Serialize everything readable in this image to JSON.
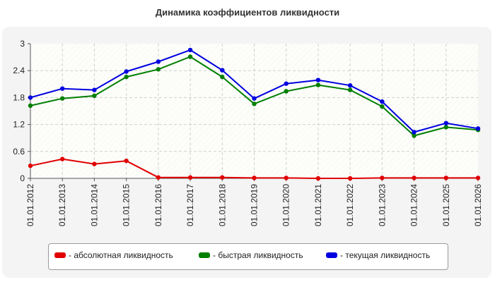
{
  "chart_data": {
    "type": "line",
    "title": "Динамика коэффициентов ликвидности",
    "categories": [
      "01.01.2012",
      "01.01.2013",
      "01.01.2014",
      "01.01.2015",
      "01.01.2016",
      "01.01.2017",
      "01.01.2018",
      "01.01.2019",
      "01.01.2020",
      "01.01.2021",
      "01.01.2022",
      "01.01.2023",
      "01.01.2024",
      "01.01.2025",
      "01.01.2026"
    ],
    "yticks": [
      "0",
      "0.6",
      "1.2",
      "1.8",
      "2.4",
      "3"
    ],
    "ylim": [
      0,
      3
    ],
    "grid": true,
    "legend_position": "bottom",
    "series": [
      {
        "name": "- абсолютная ликвидность",
        "color": "#e00000",
        "values": [
          0.28,
          0.43,
          0.32,
          0.39,
          0.02,
          0.02,
          0.02,
          0.01,
          0.01,
          0.0,
          0.0,
          0.01,
          0.01,
          0.01,
          0.01
        ]
      },
      {
        "name": "- быстрая ликвидность",
        "color": "#007f00",
        "values": [
          1.62,
          1.78,
          1.84,
          2.26,
          2.43,
          2.71,
          2.26,
          1.66,
          1.94,
          2.08,
          1.97,
          1.6,
          0.95,
          1.14,
          1.08
        ]
      },
      {
        "name": "- текущая ликвидность",
        "color": "#0000e0",
        "values": [
          1.8,
          2.0,
          1.97,
          2.38,
          2.6,
          2.86,
          2.41,
          1.78,
          2.11,
          2.19,
          2.07,
          1.71,
          1.03,
          1.23,
          1.11
        ]
      }
    ]
  }
}
